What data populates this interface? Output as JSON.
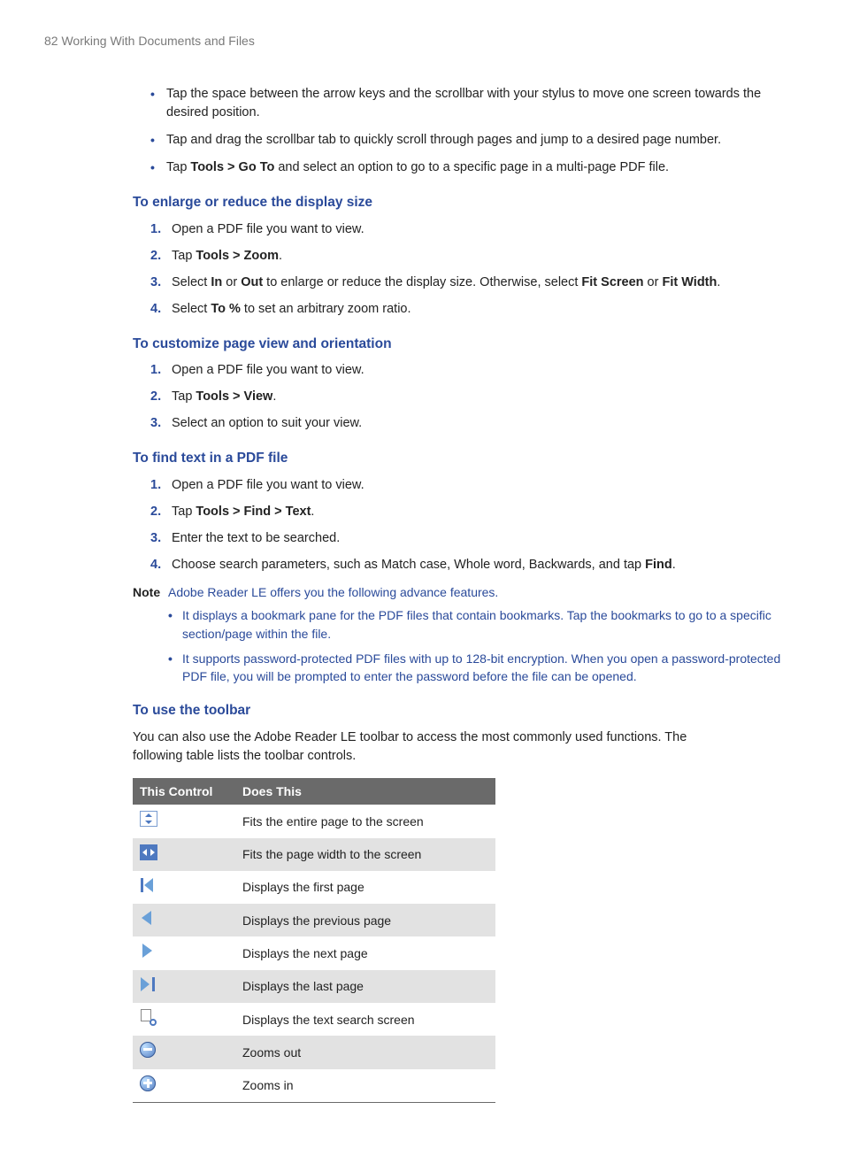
{
  "header": {
    "page_number": "82",
    "chapter_title": "Working With Documents and Files"
  },
  "intro_bullets": {
    "b1": "Tap the space between the arrow keys and the scrollbar with your stylus to move one screen towards the desired position.",
    "b2": "Tap and drag the scrollbar tab to quickly scroll through pages and jump to a desired page number.",
    "b3_pre": "Tap ",
    "b3_bold": "Tools > Go To",
    "b3_post": " and select an option to go to a specific page in a multi-page PDF file."
  },
  "sec_zoom": {
    "title": "To enlarge or reduce the display size",
    "s1": "Open a PDF file you want to view.",
    "s2_pre": "Tap ",
    "s2_bold": "Tools > Zoom",
    "s2_post": ".",
    "s3_a": "Select ",
    "s3_b": "In",
    "s3_c": " or ",
    "s3_d": "Out",
    "s3_e": " to enlarge or reduce the display size. Otherwise, select ",
    "s3_f": "Fit Screen",
    "s3_g": " or ",
    "s3_h": "Fit Width",
    "s3_i": ".",
    "s4_a": "Select ",
    "s4_b": "To %",
    "s4_c": " to set an arbitrary zoom ratio."
  },
  "sec_view": {
    "title": "To customize page view and orientation",
    "s1": "Open a PDF file you want to view.",
    "s2_pre": "Tap ",
    "s2_bold": "Tools > View",
    "s2_post": ".",
    "s3": "Select an option to suit your view."
  },
  "sec_find": {
    "title": "To find text in a PDF file",
    "s1": "Open a PDF file you want to view.",
    "s2_pre": "Tap ",
    "s2_bold": "Tools > Find > Text",
    "s2_post": ".",
    "s3": "Enter the text to be searched.",
    "s4_a": "Choose search parameters, such as Match case, Whole word, Backwards, and tap ",
    "s4_b": "Find",
    "s4_c": "."
  },
  "note": {
    "label": "Note",
    "intro": "Adobe Reader LE offers you the following advance features.",
    "b1": "It displays a bookmark pane for the PDF files that contain bookmarks. Tap the bookmarks to go to a specific section/page within the file.",
    "b2": "It supports password-protected PDF files with up to 128-bit encryption. When you open a password-protected PDF file, you will be prompted to enter the password before the file can be opened."
  },
  "sec_toolbar": {
    "title": "To use the toolbar",
    "para": "You can also use the Adobe Reader LE toolbar to access the most commonly used functions. The following table lists the toolbar controls."
  },
  "table": {
    "col1": "This Control",
    "col2": "Does This",
    "rows": {
      "r1": "Fits the entire page to the screen",
      "r2": "Fits the page width to the screen",
      "r3": "Displays the first page",
      "r4": "Displays the previous page",
      "r5": "Displays the next page",
      "r6": "Displays the last page",
      "r7": "Displays the text search screen",
      "r8": "Zooms out",
      "r9": "Zooms in"
    }
  }
}
